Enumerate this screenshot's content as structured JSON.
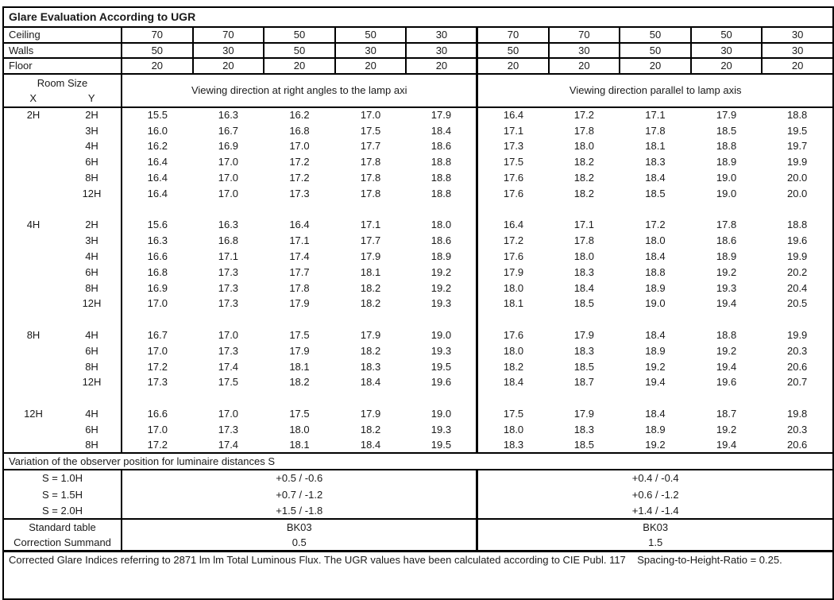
{
  "title": "Glare Evaluation According to UGR",
  "surface_rows": [
    {
      "label": "Ceiling",
      "values": [
        "70",
        "70",
        "50",
        "50",
        "30",
        "70",
        "70",
        "50",
        "50",
        "30"
      ]
    },
    {
      "label": "Walls",
      "values": [
        "50",
        "30",
        "50",
        "30",
        "30",
        "50",
        "30",
        "50",
        "30",
        "30"
      ]
    },
    {
      "label": "Floor",
      "values": [
        "20",
        "20",
        "20",
        "20",
        "20",
        "20",
        "20",
        "20",
        "20",
        "20"
      ]
    }
  ],
  "header": {
    "room_size": "Room Size",
    "x": "X",
    "y": "Y",
    "left": "Viewing direction at right angles to the lamp axi",
    "right": "Viewing direction parallel to lamp axis"
  },
  "blocks": [
    {
      "x": "2H",
      "rows": [
        {
          "y": "2H",
          "values": [
            "15.5",
            "16.3",
            "16.2",
            "17.0",
            "17.9",
            "16.4",
            "17.2",
            "17.1",
            "17.9",
            "18.8"
          ]
        },
        {
          "y": "3H",
          "values": [
            "16.0",
            "16.7",
            "16.8",
            "17.5",
            "18.4",
            "17.1",
            "17.8",
            "17.8",
            "18.5",
            "19.5"
          ]
        },
        {
          "y": "4H",
          "values": [
            "16.2",
            "16.9",
            "17.0",
            "17.7",
            "18.6",
            "17.3",
            "18.0",
            "18.1",
            "18.8",
            "19.7"
          ]
        },
        {
          "y": "6H",
          "values": [
            "16.4",
            "17.0",
            "17.2",
            "17.8",
            "18.8",
            "17.5",
            "18.2",
            "18.3",
            "18.9",
            "19.9"
          ]
        },
        {
          "y": "8H",
          "values": [
            "16.4",
            "17.0",
            "17.2",
            "17.8",
            "18.8",
            "17.6",
            "18.2",
            "18.4",
            "19.0",
            "20.0"
          ]
        },
        {
          "y": "12H",
          "values": [
            "16.4",
            "17.0",
            "17.3",
            "17.8",
            "18.8",
            "17.6",
            "18.2",
            "18.5",
            "19.0",
            "20.0"
          ]
        }
      ]
    },
    {
      "x": "4H",
      "rows": [
        {
          "y": "2H",
          "values": [
            "15.6",
            "16.3",
            "16.4",
            "17.1",
            "18.0",
            "16.4",
            "17.1",
            "17.2",
            "17.8",
            "18.8"
          ]
        },
        {
          "y": "3H",
          "values": [
            "16.3",
            "16.8",
            "17.1",
            "17.7",
            "18.6",
            "17.2",
            "17.8",
            "18.0",
            "18.6",
            "19.6"
          ]
        },
        {
          "y": "4H",
          "values": [
            "16.6",
            "17.1",
            "17.4",
            "17.9",
            "18.9",
            "17.6",
            "18.0",
            "18.4",
            "18.9",
            "19.9"
          ]
        },
        {
          "y": "6H",
          "values": [
            "16.8",
            "17.3",
            "17.7",
            "18.1",
            "19.2",
            "17.9",
            "18.3",
            "18.8",
            "19.2",
            "20.2"
          ]
        },
        {
          "y": "8H",
          "values": [
            "16.9",
            "17.3",
            "17.8",
            "18.2",
            "19.2",
            "18.0",
            "18.4",
            "18.9",
            "19.3",
            "20.4"
          ]
        },
        {
          "y": "12H",
          "values": [
            "17.0",
            "17.3",
            "17.9",
            "18.2",
            "19.3",
            "18.1",
            "18.5",
            "19.0",
            "19.4",
            "20.5"
          ]
        }
      ]
    },
    {
      "x": "8H",
      "rows": [
        {
          "y": "4H",
          "values": [
            "16.7",
            "17.0",
            "17.5",
            "17.9",
            "19.0",
            "17.6",
            "17.9",
            "18.4",
            "18.8",
            "19.9"
          ]
        },
        {
          "y": "6H",
          "values": [
            "17.0",
            "17.3",
            "17.9",
            "18.2",
            "19.3",
            "18.0",
            "18.3",
            "18.9",
            "19.2",
            "20.3"
          ]
        },
        {
          "y": "8H",
          "values": [
            "17.2",
            "17.4",
            "18.1",
            "18.3",
            "19.5",
            "18.2",
            "18.5",
            "19.2",
            "19.4",
            "20.6"
          ]
        },
        {
          "y": "12H",
          "values": [
            "17.3",
            "17.5",
            "18.2",
            "18.4",
            "19.6",
            "18.4",
            "18.7",
            "19.4",
            "19.6",
            "20.7"
          ]
        }
      ]
    },
    {
      "x": "12H",
      "rows": [
        {
          "y": "4H",
          "values": [
            "16.6",
            "17.0",
            "17.5",
            "17.9",
            "19.0",
            "17.5",
            "17.9",
            "18.4",
            "18.7",
            "19.8"
          ]
        },
        {
          "y": "6H",
          "values": [
            "17.0",
            "17.3",
            "18.0",
            "18.2",
            "19.3",
            "18.0",
            "18.3",
            "18.9",
            "19.2",
            "20.3"
          ]
        },
        {
          "y": "8H",
          "values": [
            "17.2",
            "17.4",
            "18.1",
            "18.4",
            "19.5",
            "18.3",
            "18.5",
            "19.2",
            "19.4",
            "20.6"
          ]
        }
      ]
    }
  ],
  "variation": {
    "heading": "Variation of the observer position for luminaire distances S",
    "rows": [
      {
        "label": "S = 1.0H",
        "left": "+0.5 / -0.6",
        "right": "+0.4 / -0.4"
      },
      {
        "label": "S = 1.5H",
        "left": "+0.7 / -1.2",
        "right": "+0.6 / -1.2"
      },
      {
        "label": "S = 2.0H",
        "left": "+1.5 / -1.8",
        "right": "+1.4 / -1.4"
      }
    ]
  },
  "summary_rows": [
    {
      "label": "Standard table",
      "left": "BK03",
      "right": "BK03"
    },
    {
      "label": "Correction Summand",
      "left": "0.5",
      "right": "1.5"
    }
  ],
  "footer": "Corrected Glare Indices referring to 2871 lm lm Total Luminous Flux. The UGR values have been calculated according to CIE Publ. 117    Spacing-to-Height-Ratio = 0.25."
}
